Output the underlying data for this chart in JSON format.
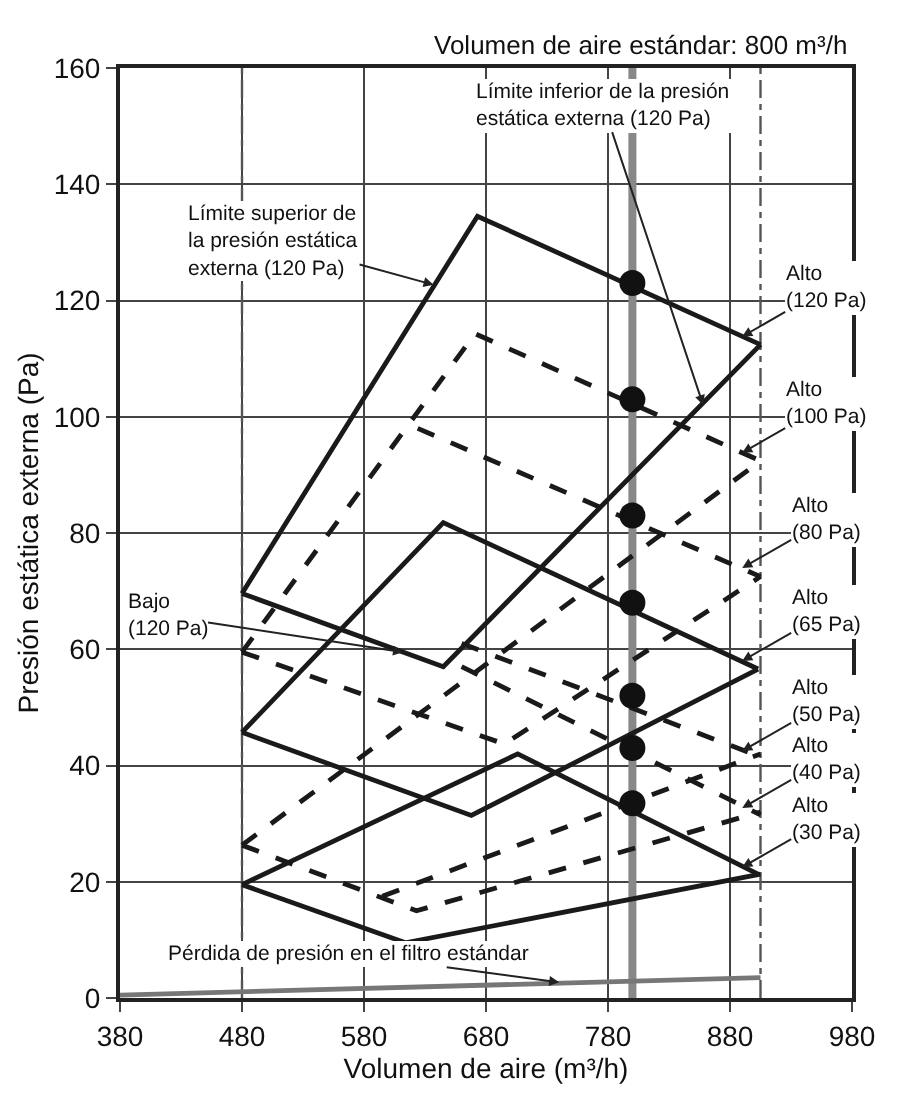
{
  "chart_data": {
    "type": "line",
    "xlabel": "Volumen de aire (m³/h)",
    "ylabel": "Presión estática externa (Pa)",
    "xlim": [
      380,
      980
    ],
    "xticks": [
      380,
      480,
      580,
      680,
      780,
      880,
      980
    ],
    "ylim": [
      0,
      160
    ],
    "yticks": [
      0,
      20,
      40,
      60,
      80,
      100,
      120,
      140,
      160
    ],
    "grid": true,
    "series": [
      {
        "color": "#1a1a1a",
        "line_style": "solid",
        "x": [
          480,
          673,
          905
        ],
        "values": [
          69.6,
          134.5,
          112.4
        ]
      },
      {
        "color": "#1a1a1a",
        "line_style": "solid",
        "x": [
          480,
          645,
          905
        ],
        "values": [
          69.6,
          57,
          112.4
        ]
      },
      {
        "color": "#1a1a1a",
        "line_style": "dashed",
        "x": [
          480,
          671,
          905
        ],
        "values": [
          59.5,
          114.3,
          92.4
        ]
      },
      {
        "color": "#1a1a1a",
        "line_style": "dashed",
        "x": [
          624,
          905
        ],
        "values": [
          98,
          72.5
        ]
      },
      {
        "color": "#1a1a1a",
        "line_style": "dashed",
        "x": [
          480,
          695,
          905
        ],
        "values": [
          59.5,
          43.7,
          72.5
        ]
      },
      {
        "color": "#1a1a1a",
        "line_style": "solid",
        "x": [
          480,
          645,
          903
        ],
        "values": [
          45.7,
          81.8,
          56.6
        ]
      },
      {
        "color": "#1a1a1a",
        "line_style": "solid",
        "x": [
          480,
          668,
          903
        ],
        "values": [
          45.7,
          31.4,
          56.6
        ]
      },
      {
        "color": "#1a1a1a",
        "line_style": "dashed",
        "x": [
          660,
          905
        ],
        "values": [
          61,
          41.5
        ]
      },
      {
        "color": "#1a1a1a",
        "line_style": "dashed",
        "x": [
          595,
          905
        ],
        "values": [
          17.5,
          42
        ]
      },
      {
        "color": "#1a1a1a",
        "line_style": "dashed",
        "x": [
          480,
          905
        ],
        "values": [
          26.3,
          92.4
        ]
      },
      {
        "color": "#1a1a1a",
        "line_style": "dashed",
        "x": [
          660,
          905
        ],
        "values": [
          57,
          31.5
        ]
      },
      {
        "color": "#1a1a1a",
        "line_style": "dashed",
        "x": [
          480,
          623,
          905
        ],
        "values": [
          26.3,
          15,
          32
        ]
      },
      {
        "color": "#1a1a1a",
        "line_style": "solid",
        "x": [
          480,
          706,
          903
        ],
        "values": [
          19.5,
          42,
          21.3
        ]
      },
      {
        "color": "#1a1a1a",
        "line_style": "solid",
        "x": [
          480,
          614,
          905
        ],
        "values": [
          19.5,
          9.5,
          21.3
        ]
      },
      {
        "color": "#777777",
        "line_style": "solid",
        "x": [
          380,
          905
        ],
        "values": [
          0.5,
          3.5
        ]
      },
      {
        "type": "scatter",
        "marker": "circle",
        "color": "#111111",
        "x": [
          800,
          800,
          800,
          800,
          800,
          800,
          800
        ],
        "values": [
          123,
          103,
          83,
          68,
          52,
          43,
          33.5
        ]
      }
    ],
    "ref_lines": [
      {
        "axis": "x",
        "value": 480,
        "color": "#555555",
        "line_style": "dashed"
      },
      {
        "axis": "x",
        "value": 905,
        "color": "#555555",
        "line_style": "dashed"
      },
      {
        "axis": "x",
        "value": 800,
        "color": "#888888",
        "line_style": "solid"
      }
    ],
    "annotations": [
      "Volumen de aire estándar: 800 m³/h",
      {
        "text": "Límite inferior de la presión\nestática externa (120 Pa)",
        "x": 858,
        "y": 102
      },
      {
        "text": "Límite superior de\nla presión estática\nexterna (120 Pa)",
        "x": 637,
        "y": 122.7
      },
      {
        "text": "Bajo\n(120 Pa)",
        "x": 612,
        "y": 59.5
      },
      {
        "text": "Alto\n(120 Pa)",
        "x": 890,
        "y": 113.8
      },
      {
        "text": "Alto\n(100 Pa)",
        "x": 890,
        "y": 93.8
      },
      {
        "text": "Alto\n(80 Pa)",
        "x": 890,
        "y": 74
      },
      {
        "text": "Alto\n(65 Pa)",
        "x": 890,
        "y": 58
      },
      {
        "text": "Alto\n(50 Pa)",
        "x": 890,
        "y": 42.5
      },
      {
        "text": "Alto\n(40 Pa)",
        "x": 890,
        "y": 32.7
      },
      {
        "text": "Alto\n(30 Pa)",
        "x": 890,
        "y": 22.5
      },
      {
        "text": "Pérdida de presión en el filtro estándar",
        "x": 740,
        "y": 2.7
      }
    ]
  }
}
